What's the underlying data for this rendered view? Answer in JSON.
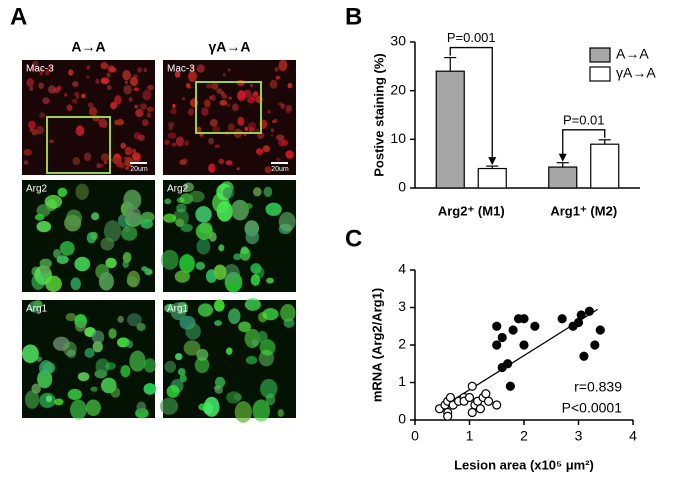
{
  "panel_a": {
    "label": "A",
    "columns": [
      "A→A",
      "γA→A"
    ],
    "rows": [
      "Mac-3",
      "Arg2",
      "Arg1"
    ],
    "scale_bar": "20um"
  },
  "chart_data": [
    {
      "type": "bar",
      "label": "B",
      "ylabel": "Postive staining (%)",
      "categories": [
        "Arg2⁺ (M1)",
        "Arg1⁺ (M2)"
      ],
      "series": [
        {
          "name": "A→A",
          "color": "#a6a6a6",
          "values": [
            24,
            4.3
          ],
          "errors": [
            2.8,
            0.9
          ]
        },
        {
          "name": "γA→A",
          "color": "#ffffff",
          "values": [
            4,
            9
          ],
          "errors": [
            0.5,
            0.9
          ]
        }
      ],
      "annotations": [
        "P=0.001",
        "P=0.01"
      ],
      "ylim": [
        0,
        30
      ],
      "yticks": [
        0,
        10,
        20,
        30
      ],
      "legend": "top-right"
    },
    {
      "type": "scatter",
      "label": "C",
      "xlabel": "Lesion area (x10⁵ μm²)",
      "ylabel": "mRNA (Arg2/Arg1)",
      "series": [
        {
          "marker": "filled",
          "color": "#000000",
          "x": [
            1.5,
            1.5,
            1.6,
            1.7,
            1.75,
            1.8,
            1.9,
            2.0,
            2.0,
            2.2,
            2.7,
            2.9,
            3.0,
            3.05,
            3.1,
            3.2,
            3.3,
            3.4,
            1.6
          ],
          "values": [
            2.0,
            2.5,
            2.2,
            1.5,
            0.9,
            2.4,
            2.7,
            2.7,
            2.0,
            2.5,
            2.7,
            2.5,
            2.6,
            2.8,
            1.7,
            2.9,
            2.0,
            2.4,
            1.4
          ]
        },
        {
          "marker": "open",
          "color": "#000000",
          "x": [
            0.45,
            0.55,
            0.6,
            0.6,
            0.65,
            0.7,
            0.8,
            0.9,
            0.9,
            1.05,
            1.05,
            1.1,
            1.15,
            1.2,
            1.25,
            1.3,
            1.35,
            1.5,
            1.0,
            0.6
          ],
          "values": [
            0.3,
            0.4,
            0.5,
            0.2,
            0.6,
            0.4,
            0.5,
            0.6,
            0.5,
            0.9,
            0.2,
            0.4,
            0.5,
            0.3,
            0.6,
            0.7,
            0.5,
            0.4,
            0.6,
            0.1
          ]
        }
      ],
      "fit_line": {
        "x": [
          0.5,
          3.35
        ],
        "values": [
          0.35,
          2.95
        ]
      },
      "annotations": [
        "r=0.839",
        "P<0.0001"
      ],
      "xlim": [
        0,
        4
      ],
      "ylim": [
        0,
        4
      ],
      "xticks": [
        0,
        1,
        2,
        3,
        4
      ],
      "yticks": [
        0,
        1,
        2,
        3,
        4
      ]
    }
  ]
}
